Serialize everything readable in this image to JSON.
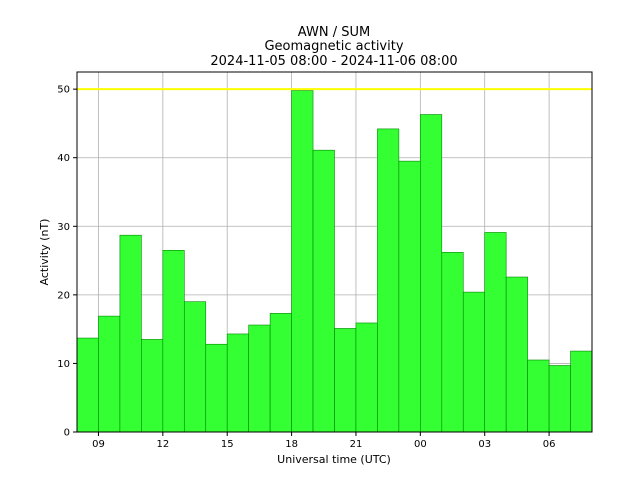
{
  "chart_data": {
    "type": "bar",
    "title_lines": [
      "AWN / SUM",
      "Geomagnetic activity",
      "2024-11-05 08:00 - 2024-11-06 08:00"
    ],
    "xlabel": "Universal time (UTC)",
    "ylabel": "Activity (nT)",
    "x_start_hour": 8,
    "bar_width_hours": 1,
    "x_span_hours": 24,
    "x_ticks": [
      {
        "hour": 9,
        "label": "09"
      },
      {
        "hour": 12,
        "label": "12"
      },
      {
        "hour": 15,
        "label": "15"
      },
      {
        "hour": 18,
        "label": "18"
      },
      {
        "hour": 21,
        "label": "21"
      },
      {
        "hour": 24,
        "label": "00"
      },
      {
        "hour": 27,
        "label": "03"
      },
      {
        "hour": 30,
        "label": "06"
      }
    ],
    "ylim": [
      0,
      52.5
    ],
    "y_ticks": [
      0,
      10,
      20,
      30,
      40,
      50
    ],
    "values": [
      13.7,
      16.9,
      28.7,
      13.5,
      26.5,
      19.0,
      12.8,
      14.3,
      15.6,
      17.3,
      49.8,
      41.1,
      15.1,
      15.9,
      44.2,
      39.5,
      46.3,
      26.2,
      20.4,
      29.1,
      22.6,
      10.5,
      9.7,
      11.8
    ],
    "threshold": 50,
    "colors": {
      "bar_fill": "#33ff33",
      "bar_edge": "#008800",
      "threshold_line": "#ffff00",
      "grid": "#b0b0b0",
      "axes": "#000000"
    },
    "grid": true
  }
}
